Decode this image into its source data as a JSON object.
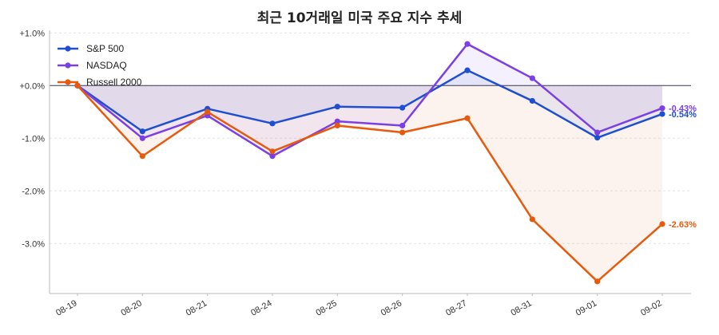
{
  "chart_data": {
    "type": "line",
    "title": "최근 10거래일 미국 주요 지수 추세",
    "xlabel": "",
    "ylabel": "",
    "categories": [
      "08-19",
      "08-20",
      "08-21",
      "08-24",
      "08-25",
      "08-26",
      "08-27",
      "08-31",
      "09-01",
      "09-02"
    ],
    "ylim": [
      -3.95,
      1.05
    ],
    "yticks": [
      1.0,
      0.0,
      -1.0,
      -2.0,
      -3.0
    ],
    "ytick_labels": [
      "+1.0%",
      "+0.0%",
      "-1.0%",
      "-2.0%",
      "-3.0%"
    ],
    "grid": true,
    "legend_position": "top-left",
    "series": [
      {
        "name": "S&P 500",
        "color": "#1f4fd1",
        "values": [
          0.0,
          -0.87,
          -0.44,
          -0.72,
          -0.4,
          -0.42,
          0.29,
          -0.29,
          -0.99,
          -0.54
        ],
        "end_label": "-0.54%"
      },
      {
        "name": "NASDAQ",
        "color": "#7b3fe4",
        "values": [
          0.0,
          -1.0,
          -0.57,
          -1.34,
          -0.68,
          -0.76,
          0.79,
          0.14,
          -0.89,
          -0.43
        ],
        "end_label": "-0.43%"
      },
      {
        "name": "Russell 2000",
        "color": "#e8590c",
        "values": [
          0.0,
          -1.34,
          -0.5,
          -1.25,
          -0.76,
          -0.89,
          -0.62,
          -2.54,
          -3.72,
          -2.63
        ],
        "end_label": "-2.63%"
      }
    ]
  }
}
